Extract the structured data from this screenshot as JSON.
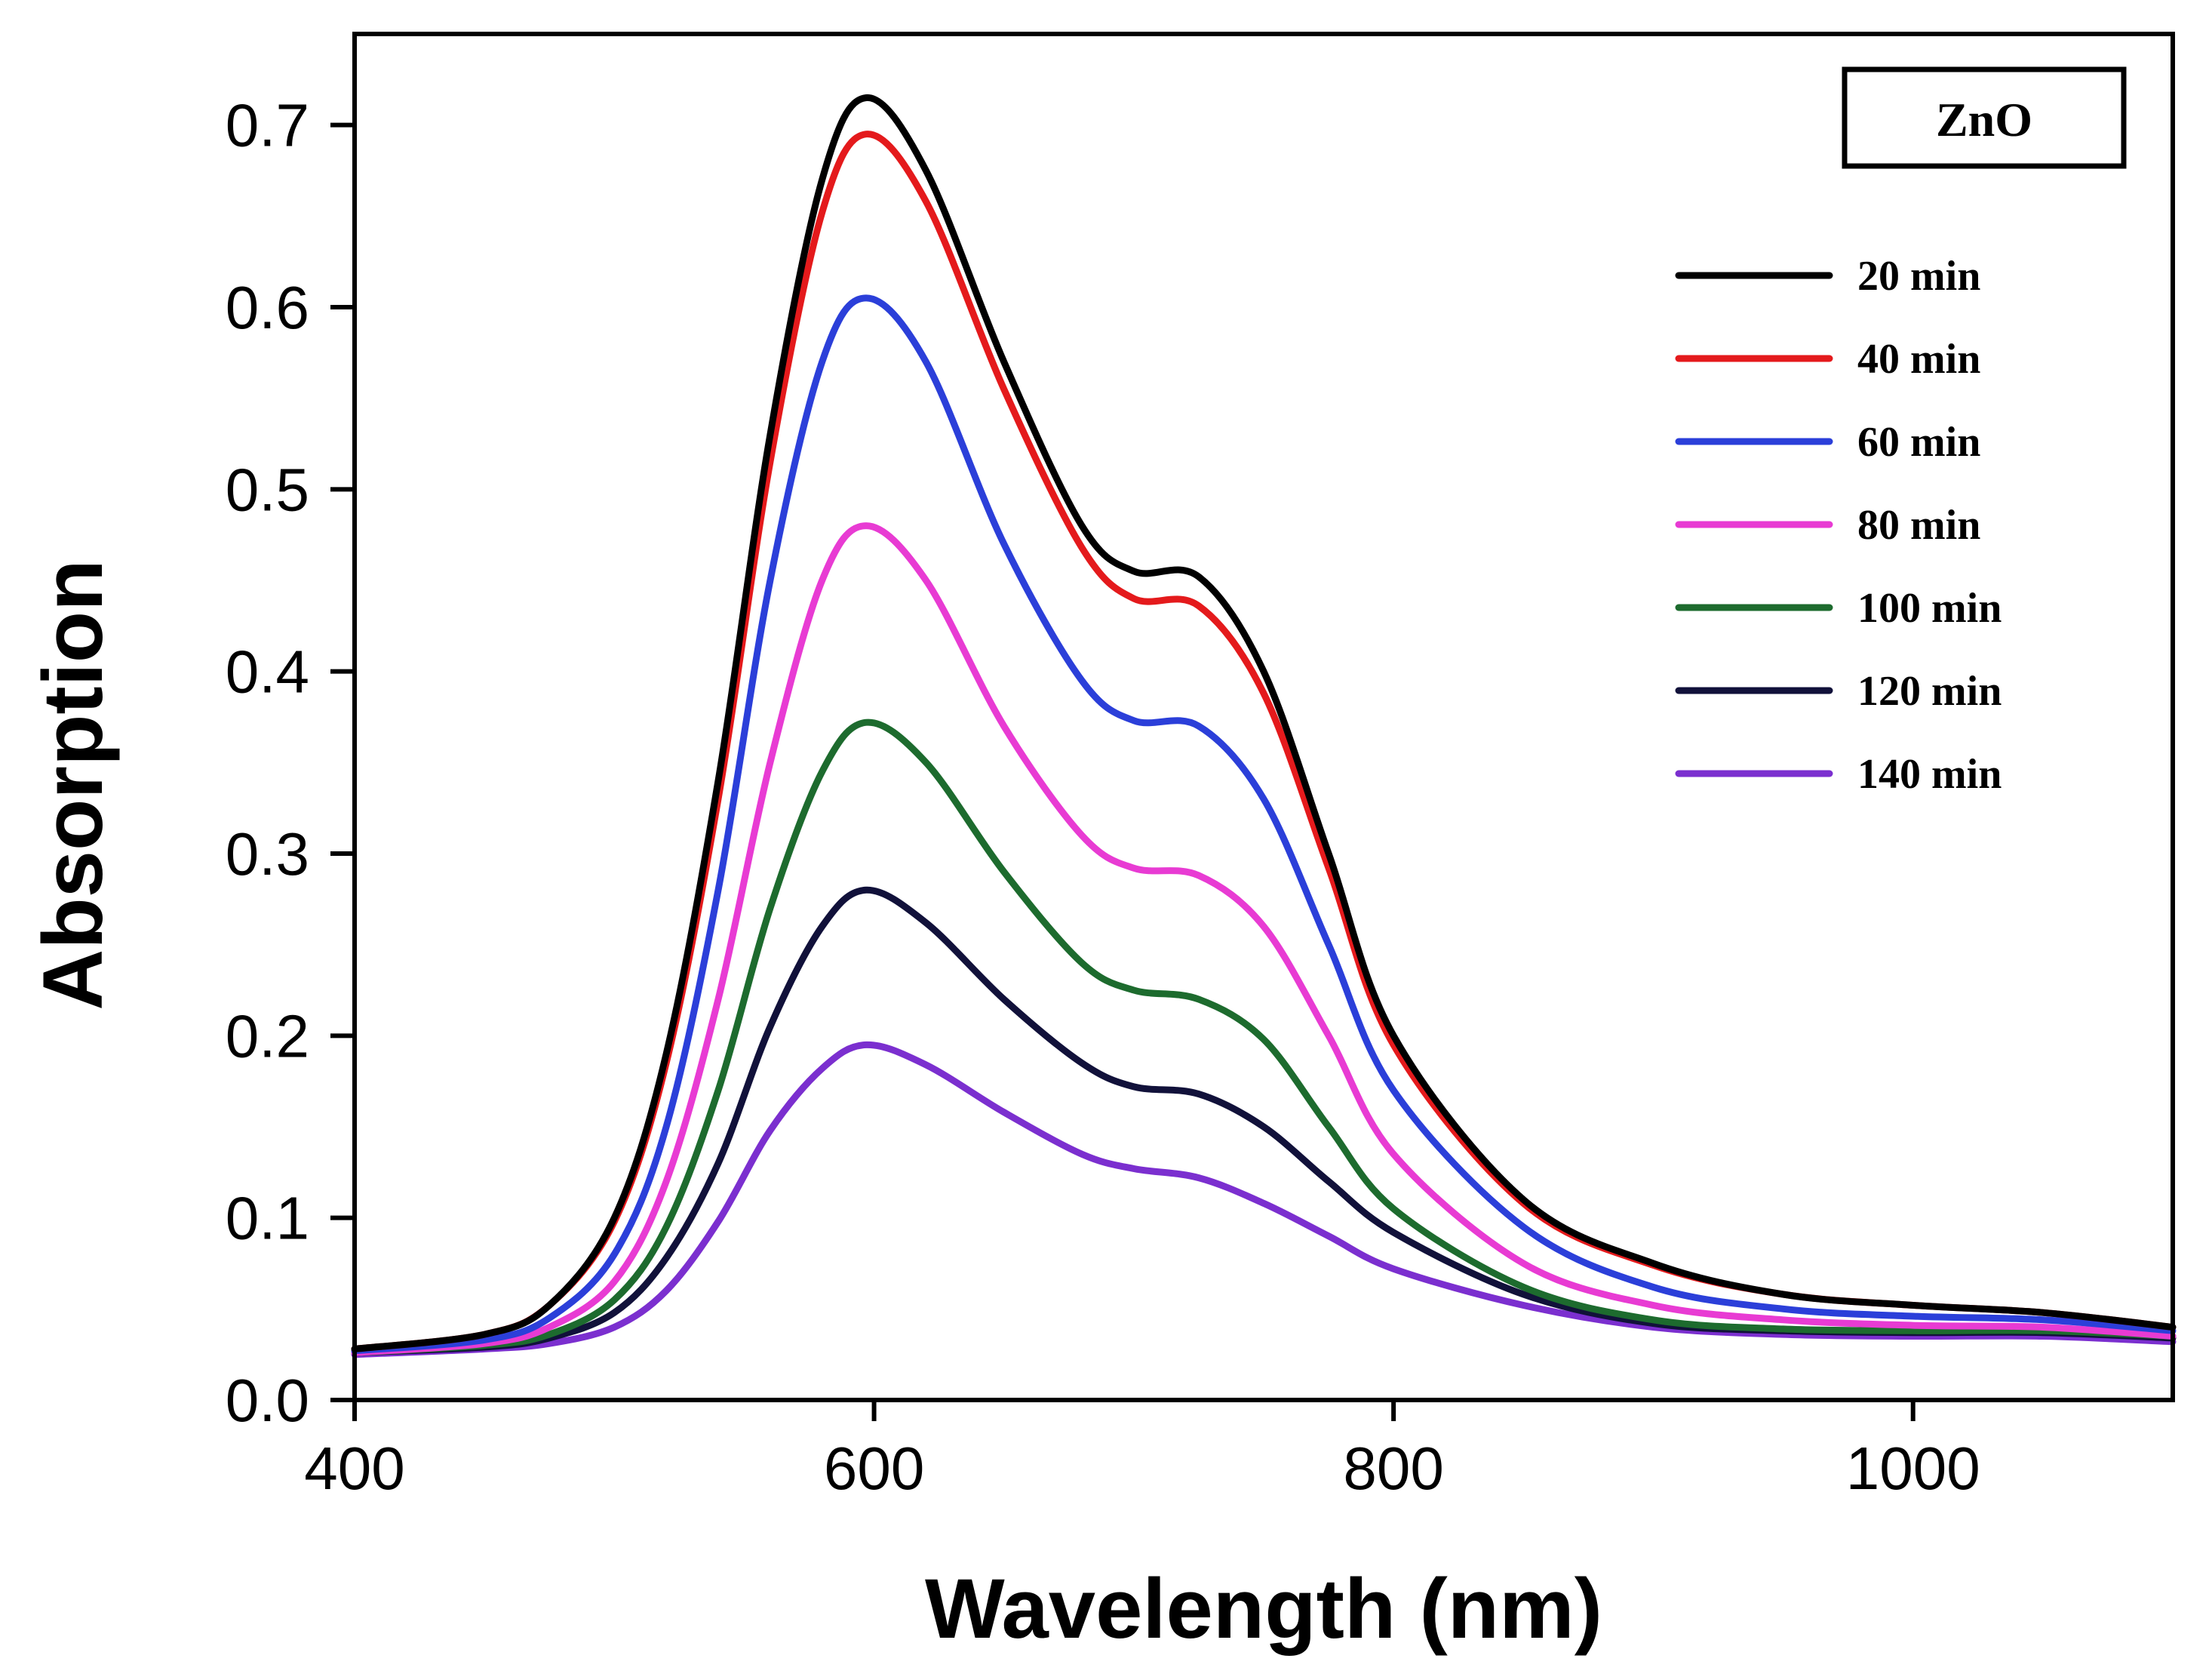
{
  "chart_data": {
    "type": "line",
    "title": "",
    "xlabel": "Wavelength (nm)",
    "ylabel": "Absorption",
    "xlim": [
      400,
      1100
    ],
    "ylim": [
      0.0,
      0.75
    ],
    "xticks": [
      400,
      600,
      800,
      1000
    ],
    "xtick_labels": [
      "400",
      "600",
      "800",
      "1000"
    ],
    "yticks": [
      0.0,
      0.1,
      0.2,
      0.3,
      0.4,
      0.5,
      0.6,
      0.7
    ],
    "ytick_labels": [
      "0.0",
      "0.1",
      "0.2",
      "0.3",
      "0.4",
      "0.5",
      "0.6",
      "0.7"
    ],
    "grid": false,
    "legend_position": "top-right",
    "annotation_box": "ZnO",
    "x": [
      400,
      450,
      475,
      500,
      520,
      540,
      560,
      580,
      597,
      620,
      650,
      680,
      700,
      725,
      750,
      775,
      800,
      850,
      900,
      950,
      1000,
      1050,
      1100
    ],
    "series": [
      {
        "name": "20 min",
        "color": "#000000",
        "values": [
          0.028,
          0.036,
          0.052,
          0.1,
          0.19,
          0.34,
          0.53,
          0.67,
          0.715,
          0.675,
          0.57,
          0.48,
          0.455,
          0.452,
          0.4,
          0.3,
          0.2,
          0.11,
          0.075,
          0.058,
          0.052,
          0.048,
          0.04
        ]
      },
      {
        "name": "40 min",
        "color": "#e41a1c",
        "values": [
          0.028,
          0.036,
          0.052,
          0.098,
          0.185,
          0.33,
          0.515,
          0.652,
          0.695,
          0.658,
          0.555,
          0.468,
          0.44,
          0.436,
          0.388,
          0.292,
          0.195,
          0.108,
          0.074,
          0.058,
          0.052,
          0.048,
          0.04
        ]
      },
      {
        "name": "60 min",
        "color": "#2b3fd9",
        "values": [
          0.027,
          0.033,
          0.045,
          0.08,
          0.15,
          0.28,
          0.45,
          0.57,
          0.605,
          0.57,
          0.47,
          0.395,
          0.373,
          0.37,
          0.33,
          0.25,
          0.17,
          0.095,
          0.062,
          0.05,
          0.046,
          0.044,
          0.038
        ]
      },
      {
        "name": "80 min",
        "color": "#e83bd3",
        "values": [
          0.026,
          0.031,
          0.04,
          0.065,
          0.12,
          0.22,
          0.35,
          0.45,
          0.48,
          0.45,
          0.37,
          0.31,
          0.292,
          0.288,
          0.26,
          0.2,
          0.135,
          0.075,
          0.052,
          0.044,
          0.041,
          0.04,
          0.035
        ]
      },
      {
        "name": "100 min",
        "color": "#1d6b2e",
        "values": [
          0.026,
          0.03,
          0.036,
          0.055,
          0.095,
          0.17,
          0.27,
          0.345,
          0.372,
          0.35,
          0.29,
          0.24,
          0.225,
          0.22,
          0.198,
          0.15,
          0.105,
          0.062,
          0.044,
          0.039,
          0.038,
          0.038,
          0.035
        ]
      },
      {
        "name": "120 min",
        "color": "#11113a",
        "values": [
          0.026,
          0.029,
          0.034,
          0.048,
          0.078,
          0.13,
          0.205,
          0.26,
          0.28,
          0.262,
          0.22,
          0.185,
          0.172,
          0.168,
          0.15,
          0.12,
          0.092,
          0.058,
          0.042,
          0.038,
          0.037,
          0.037,
          0.034
        ]
      },
      {
        "name": "140 min",
        "color": "#7b2fcf",
        "values": [
          0.025,
          0.028,
          0.031,
          0.04,
          0.06,
          0.098,
          0.148,
          0.182,
          0.195,
          0.184,
          0.158,
          0.135,
          0.127,
          0.122,
          0.108,
          0.09,
          0.072,
          0.052,
          0.04,
          0.036,
          0.035,
          0.035,
          0.032
        ]
      }
    ]
  }
}
